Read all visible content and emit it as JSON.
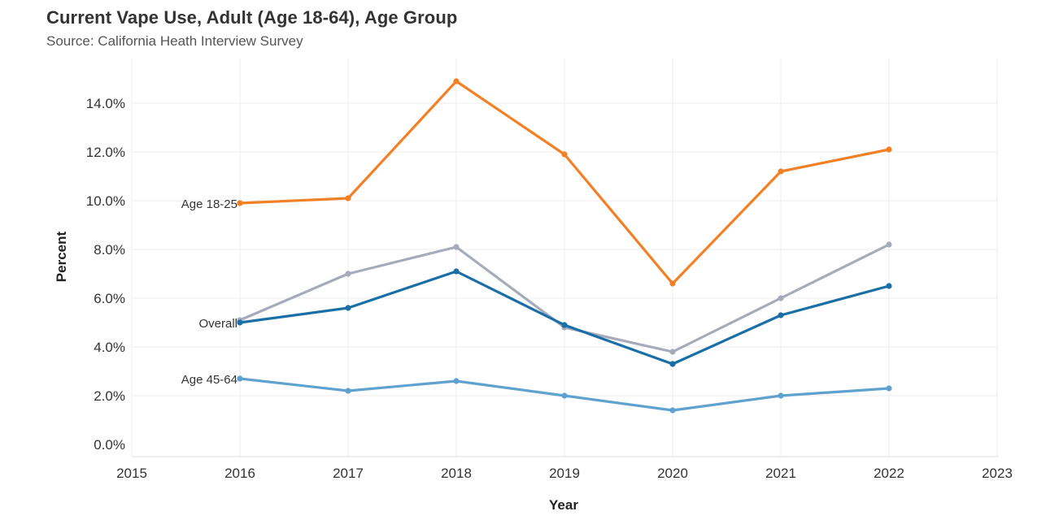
{
  "header": {
    "title": "Current Vape Use, Adult (Age 18-64), Age Group",
    "subtitle": "Source: California Heath Interview Survey"
  },
  "chart_data": {
    "type": "line",
    "title": "Current Vape Use, Adult (Age 18-64), Age Group",
    "subtitle": "Source: California Heath Interview Survey",
    "xlabel": "Year",
    "ylabel": "Percent",
    "xlim": [
      2015,
      2023
    ],
    "ylim": [
      0,
      15
    ],
    "x_ticks": [
      "2015",
      "2016",
      "2017",
      "2018",
      "2019",
      "2020",
      "2021",
      "2022",
      "2023"
    ],
    "y_ticks": [
      "0.0%",
      "2.0%",
      "4.0%",
      "6.0%",
      "8.0%",
      "10.0%",
      "12.0%",
      "14.0%"
    ],
    "y_tick_values": [
      0,
      2,
      4,
      6,
      8,
      10,
      12,
      14
    ],
    "grid": true,
    "legend": "inline labels at left of lines",
    "x": [
      2016,
      2017,
      2018,
      2019,
      2020,
      2021,
      2022
    ],
    "series": [
      {
        "name": "Age 18-25",
        "color": "#f28024",
        "values": [
          9.9,
          10.1,
          14.9,
          11.9,
          6.6,
          11.2,
          12.1
        ]
      },
      {
        "name": "",
        "color": "#a5abba",
        "values": [
          5.1,
          7.0,
          8.1,
          4.8,
          3.8,
          6.0,
          8.2
        ]
      },
      {
        "name": "Overall",
        "color": "#1a6fa6",
        "values": [
          5.0,
          5.6,
          7.1,
          4.9,
          3.3,
          5.3,
          6.5
        ]
      },
      {
        "name": "Age 45-64",
        "color": "#5fa2d0",
        "values": [
          2.7,
          2.2,
          2.6,
          2.0,
          1.4,
          2.0,
          2.3
        ]
      }
    ]
  }
}
